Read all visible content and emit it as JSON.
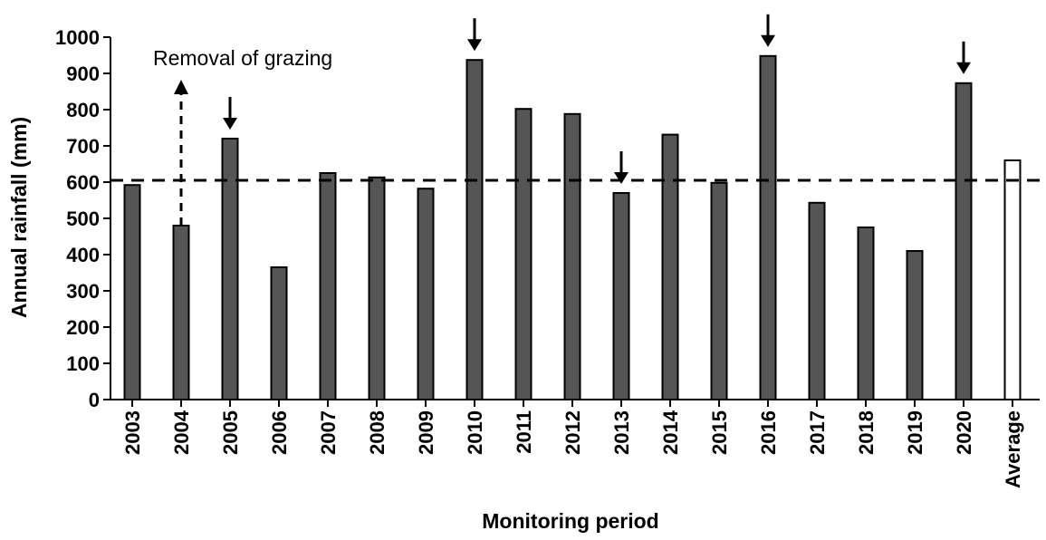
{
  "chart_data": {
    "type": "bar",
    "categories": [
      "2003",
      "2004",
      "2005",
      "2006",
      "2007",
      "2008",
      "2009",
      "2010",
      "2011",
      "2012",
      "2013",
      "2014",
      "2015",
      "2016",
      "2017",
      "2018",
      "2019",
      "2020",
      "Average"
    ],
    "values": [
      592,
      480,
      720,
      365,
      625,
      613,
      582,
      937,
      802,
      788,
      570,
      731,
      598,
      948,
      543,
      475,
      410,
      873,
      660
    ],
    "title": "",
    "xlabel": "Monitoring period",
    "ylabel": "Annual rainfall (mm)",
    "ylim": [
      0,
      1000
    ],
    "yticks": [
      0,
      100,
      200,
      300,
      400,
      500,
      600,
      700,
      800,
      900,
      1000
    ],
    "grid": false,
    "bar_colors": {
      "year": "#555555",
      "average": "#ffffff",
      "edge": "#000000"
    },
    "reference_line": {
      "value": 605,
      "style": "dashed",
      "color": "#000000"
    },
    "arrow_markers": [
      "2005",
      "2010",
      "2013",
      "2016",
      "2020"
    ],
    "annotations": [
      {
        "text": "Removal of grazing",
        "category": "2004",
        "arrow": "dashed-up"
      }
    ]
  }
}
